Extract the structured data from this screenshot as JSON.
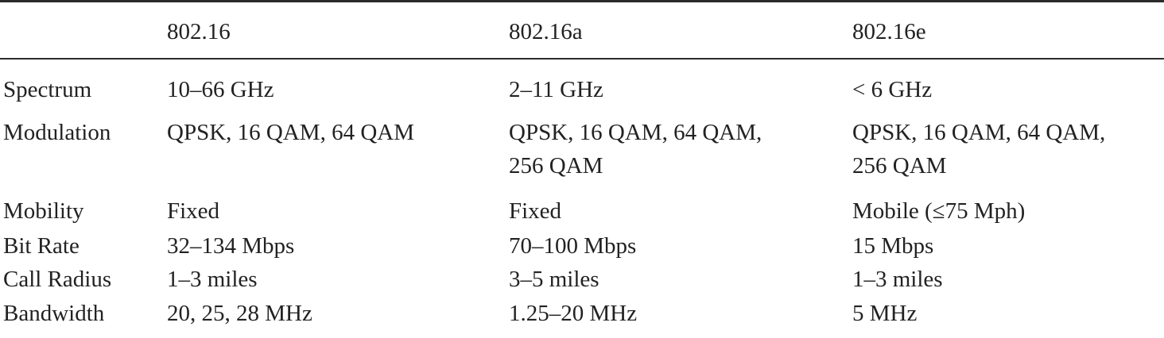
{
  "table": {
    "columns": [
      "",
      "802.16",
      "802.16a",
      "802.16e"
    ],
    "rows": [
      {
        "label": "Spectrum",
        "c1": "10–66 GHz",
        "c2": "2–11 GHz",
        "c3": "< 6 GHz"
      },
      {
        "label": "Modulation",
        "c1": "QPSK, 16 QAM, 64 QAM",
        "c2": "QPSK, 16 QAM, 64 QAM,",
        "c2b": "256 QAM",
        "c3": "QPSK, 16 QAM, 64 QAM,",
        "c3b": "256 QAM"
      },
      {
        "label": "Mobility",
        "c1": "Fixed",
        "c2": "Fixed",
        "c3": "Mobile (≤75 Mph)"
      },
      {
        "label": "Bit Rate",
        "c1": "32–134 Mbps",
        "c2": "70–100 Mbps",
        "c3": "15 Mbps"
      },
      {
        "label": "Call Radius",
        "c1": "1–3 miles",
        "c2": "3–5 miles",
        "c3": "1–3 miles"
      },
      {
        "label": "Bandwidth",
        "c1": "20, 25, 28 MHz",
        "c2": "1.25–20 MHz",
        "c3": "5 MHz"
      }
    ]
  }
}
